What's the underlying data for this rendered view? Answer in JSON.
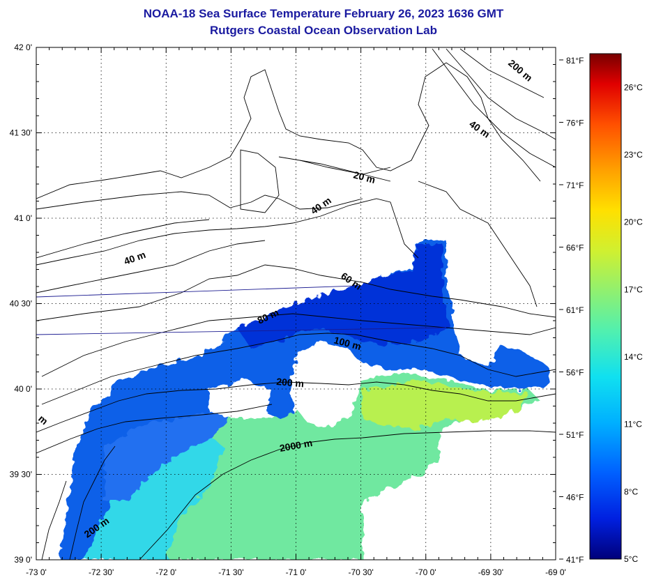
{
  "header": {
    "title": "NOAA-18 Sea Surface Temperature February 26, 2023 1636 GMT",
    "subtitle": "Rutgers Coastal Ocean Observation Lab"
  },
  "map": {
    "lon_range": [
      -73,
      -69
    ],
    "lat_range": [
      39,
      42
    ],
    "lon_ticks": [
      "-73 0'",
      "-72 30'",
      "-72 0'",
      "-71 30'",
      "-71 0'",
      "-70 30'",
      "-70 0'",
      "-69 30'",
      "-69 0'"
    ],
    "lat_ticks": [
      "42 0'",
      "41 30'",
      "41 0'",
      "40 30'",
      "40 0'",
      "39 30'",
      "39 0'"
    ],
    "grid": true,
    "contour_labels": [
      "200 m",
      "40 m",
      "20 m",
      "40 m",
      "40 m",
      "60 m",
      "80 m",
      "100 m",
      "200 m",
      "2000 m",
      "200 m",
      "m"
    ]
  },
  "colorbar": {
    "fahrenheit_ticks": [
      "81°F",
      "76°F",
      "71°F",
      "66°F",
      "61°F",
      "56°F",
      "51°F",
      "46°F",
      "41°F"
    ],
    "celsius_ticks": [
      "26°C",
      "23°C",
      "20°C",
      "17°C",
      "14°C",
      "11°C",
      "8°C",
      "5°C"
    ],
    "range_c": [
      5,
      27.5
    ],
    "colors": [
      "#00007a",
      "#0020e0",
      "#0060ff",
      "#00b0ff",
      "#10e0f0",
      "#50f0b0",
      "#90f070",
      "#d0f030",
      "#ffe000",
      "#ffa000",
      "#ff5000",
      "#e00000",
      "#780000"
    ]
  }
}
